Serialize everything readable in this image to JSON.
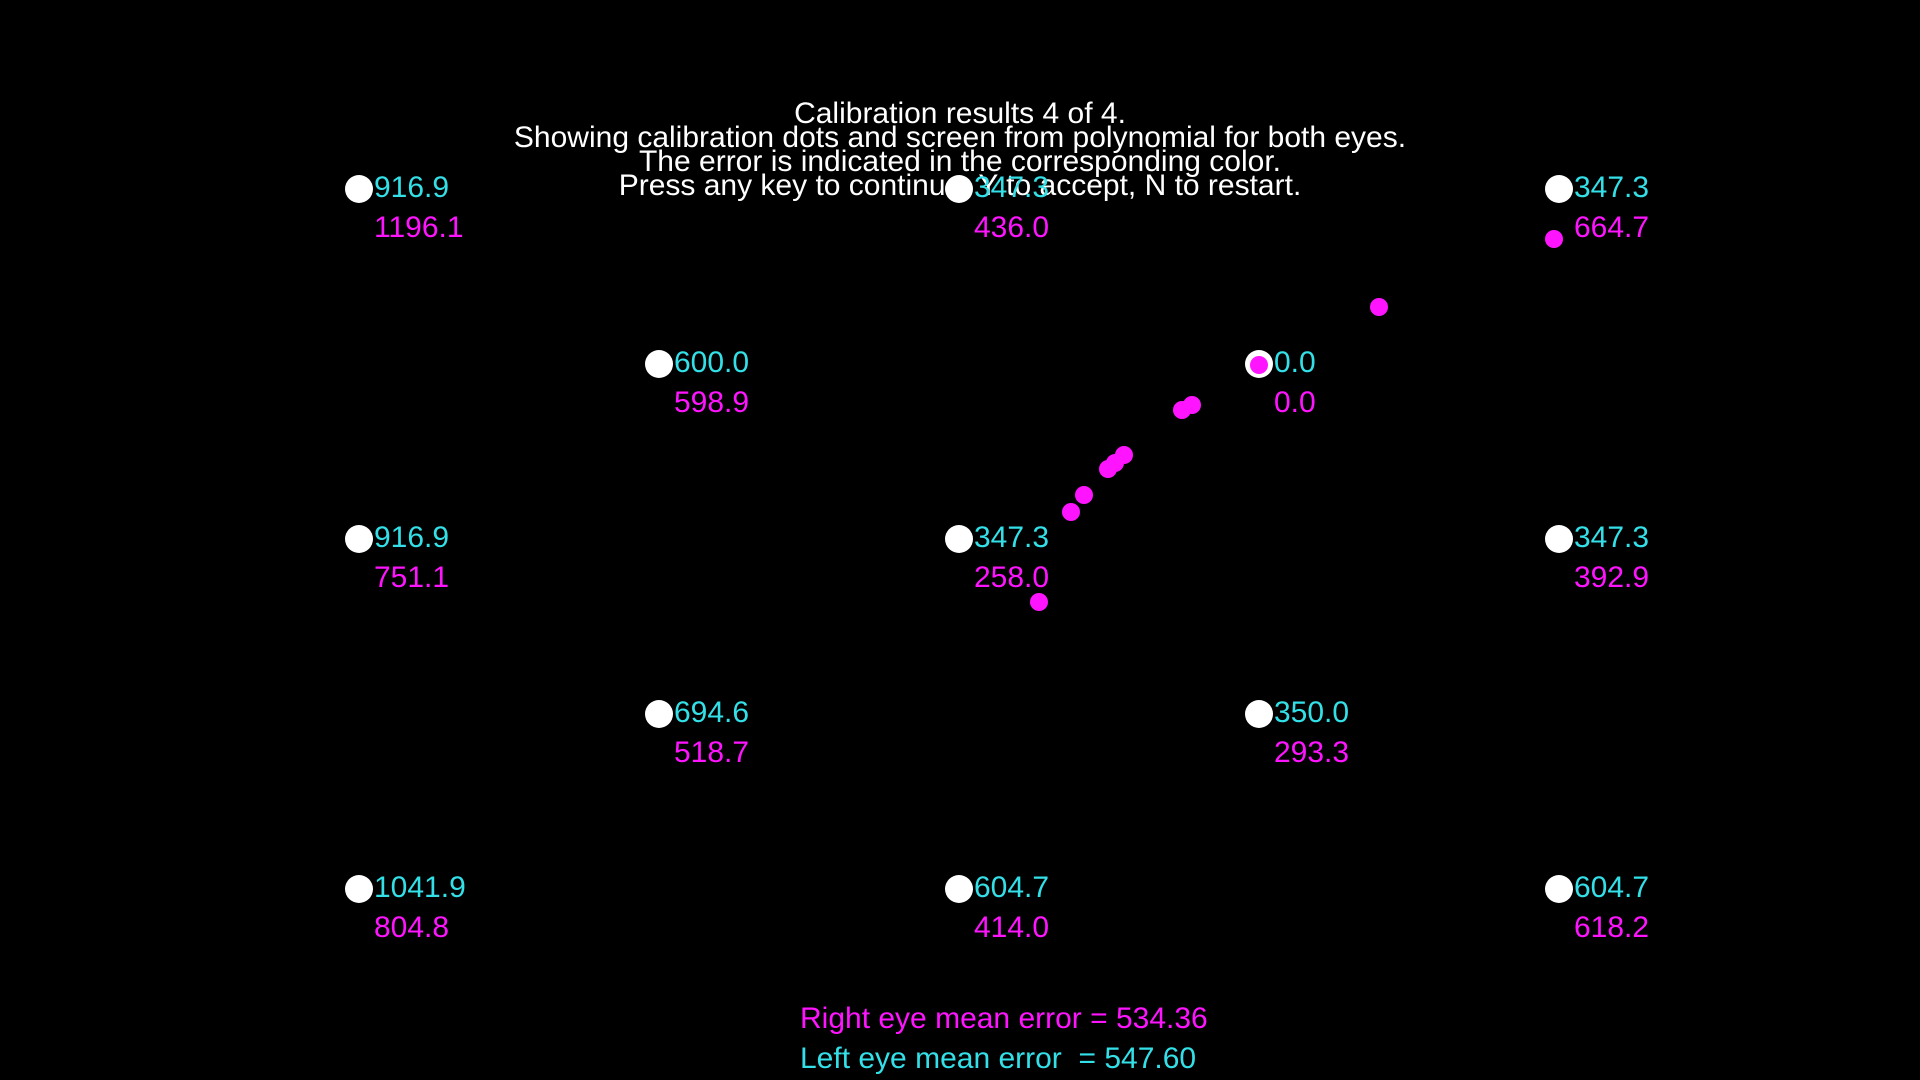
{
  "instructions": [
    "Calibration results 4 of 4.",
    "Showing calibration dots and screen from polynomial for both eyes.",
    "The error is indicated in the corresponding color.",
    "Press any key to continue, Y to accept, N to restart."
  ],
  "colors": {
    "background": "#000000",
    "target": "#ffffff",
    "left_eye": "#33e0e8",
    "right_eye": "#ff14ff",
    "text": "#ffffff"
  },
  "calibration_points": [
    {
      "left_error": "916.9",
      "right_error": "1196.1"
    },
    {
      "left_error": "347.3",
      "right_error": "436.0"
    },
    {
      "left_error": "347.3",
      "right_error": "664.7"
    },
    {
      "left_error": "600.0",
      "right_error": "598.9"
    },
    {
      "left_error": "0.0",
      "right_error": "0.0"
    },
    {
      "left_error": "916.9",
      "right_error": "751.1"
    },
    {
      "left_error": "347.3",
      "right_error": "258.0"
    },
    {
      "left_error": "347.3",
      "right_error": "392.9"
    },
    {
      "left_error": "694.6",
      "right_error": "518.7"
    },
    {
      "left_error": "350.0",
      "right_error": "293.3"
    },
    {
      "left_error": "1041.9",
      "right_error": "804.8"
    },
    {
      "left_error": "604.7",
      "right_error": "414.0"
    },
    {
      "left_error": "604.7",
      "right_error": "618.2"
    }
  ],
  "summary": {
    "right_eye": "Right eye mean error = 534.36",
    "left_eye": "Left eye mean error  = 547.60"
  }
}
